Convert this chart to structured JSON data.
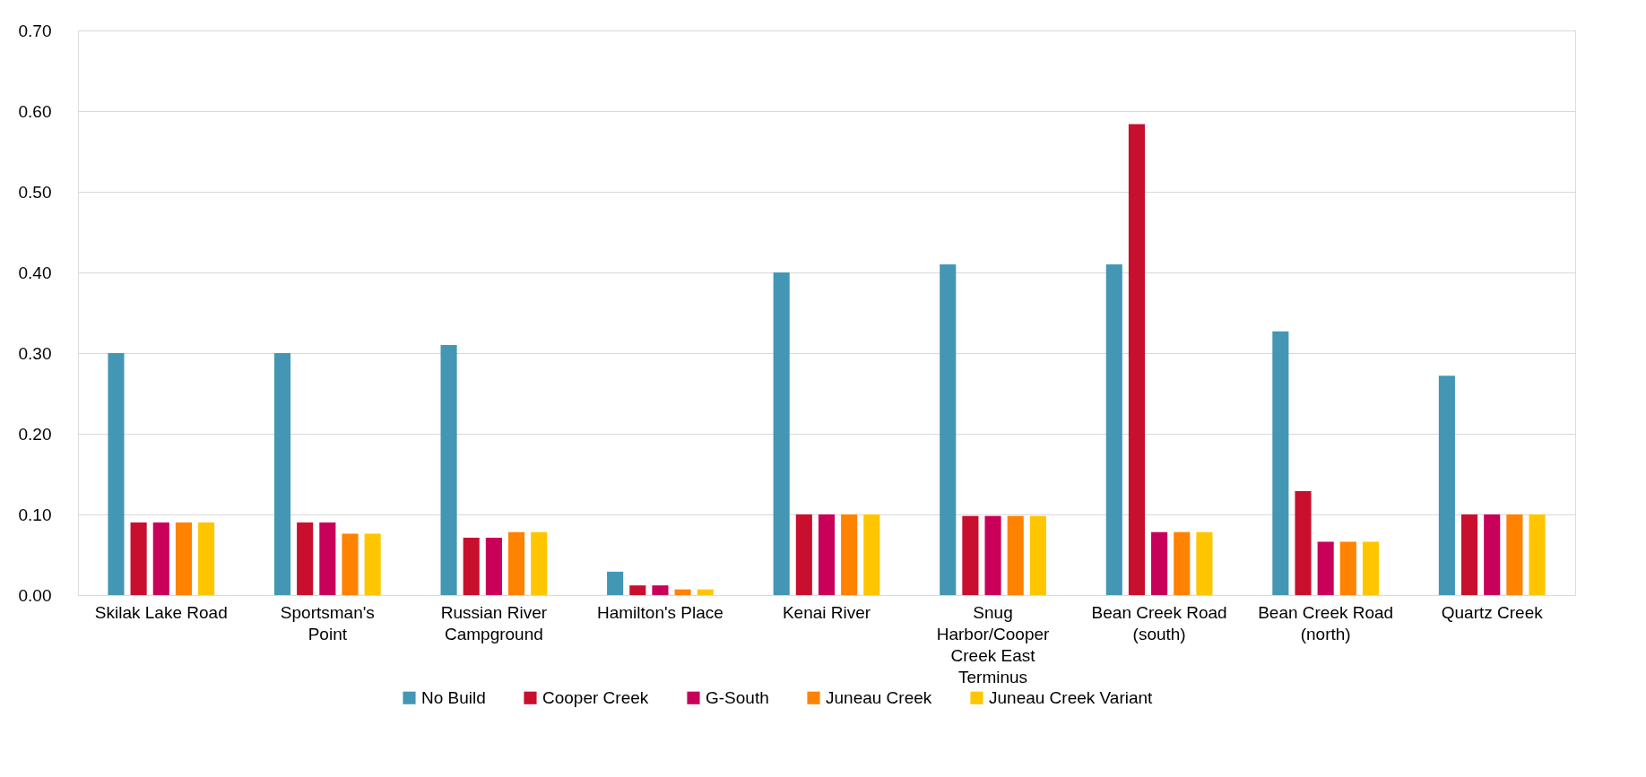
{
  "chart_data": {
    "type": "bar",
    "categories": [
      "Skilak Lake Road",
      "Sportsman's Point",
      "Russian River Campground",
      "Hamilton's Place",
      "Kenai River",
      "Snug Harbor/Cooper Creek East Terminus",
      "Bean Creek Road (south)",
      "Bean Creek Road (north)",
      "Quartz Creek"
    ],
    "series": [
      {
        "name": "No Build",
        "color": "#4397b5",
        "values": [
          0.3,
          0.3,
          0.31,
          0.029,
          0.4,
          0.41,
          0.41,
          0.327,
          0.272
        ]
      },
      {
        "name": "Cooper Creek",
        "color": "#c8102e",
        "values": [
          0.09,
          0.09,
          0.071,
          0.012,
          0.1,
          0.098,
          0.584,
          0.129,
          0.1
        ]
      },
      {
        "name": "G-South",
        "color": "#c8005a",
        "values": [
          0.09,
          0.09,
          0.071,
          0.012,
          0.1,
          0.098,
          0.078,
          0.066,
          0.1
        ]
      },
      {
        "name": "Juneau Creek",
        "color": "#ff8200",
        "values": [
          0.09,
          0.076,
          0.078,
          0.007,
          0.1,
          0.098,
          0.078,
          0.066,
          0.1
        ]
      },
      {
        "name": "Juneau Creek Variant",
        "color": "#ffc600",
        "values": [
          0.09,
          0.076,
          0.078,
          0.007,
          0.1,
          0.098,
          0.078,
          0.066,
          0.1
        ]
      }
    ],
    "ylim": [
      0,
      0.7
    ],
    "yticks": [
      {
        "value": 0,
        "label": "0.00"
      },
      {
        "value": 0.1,
        "label": "0.10"
      },
      {
        "value": 0.2,
        "label": "0.20"
      },
      {
        "value": 0.3,
        "label": "0.30"
      },
      {
        "value": 0.4,
        "label": "0.40"
      },
      {
        "value": 0.5,
        "label": "0.50"
      },
      {
        "value": 0.6,
        "label": "0.60"
      },
      {
        "value": 0.7,
        "label": "0.70"
      }
    ],
    "grid": "y",
    "legend": "bottom"
  }
}
